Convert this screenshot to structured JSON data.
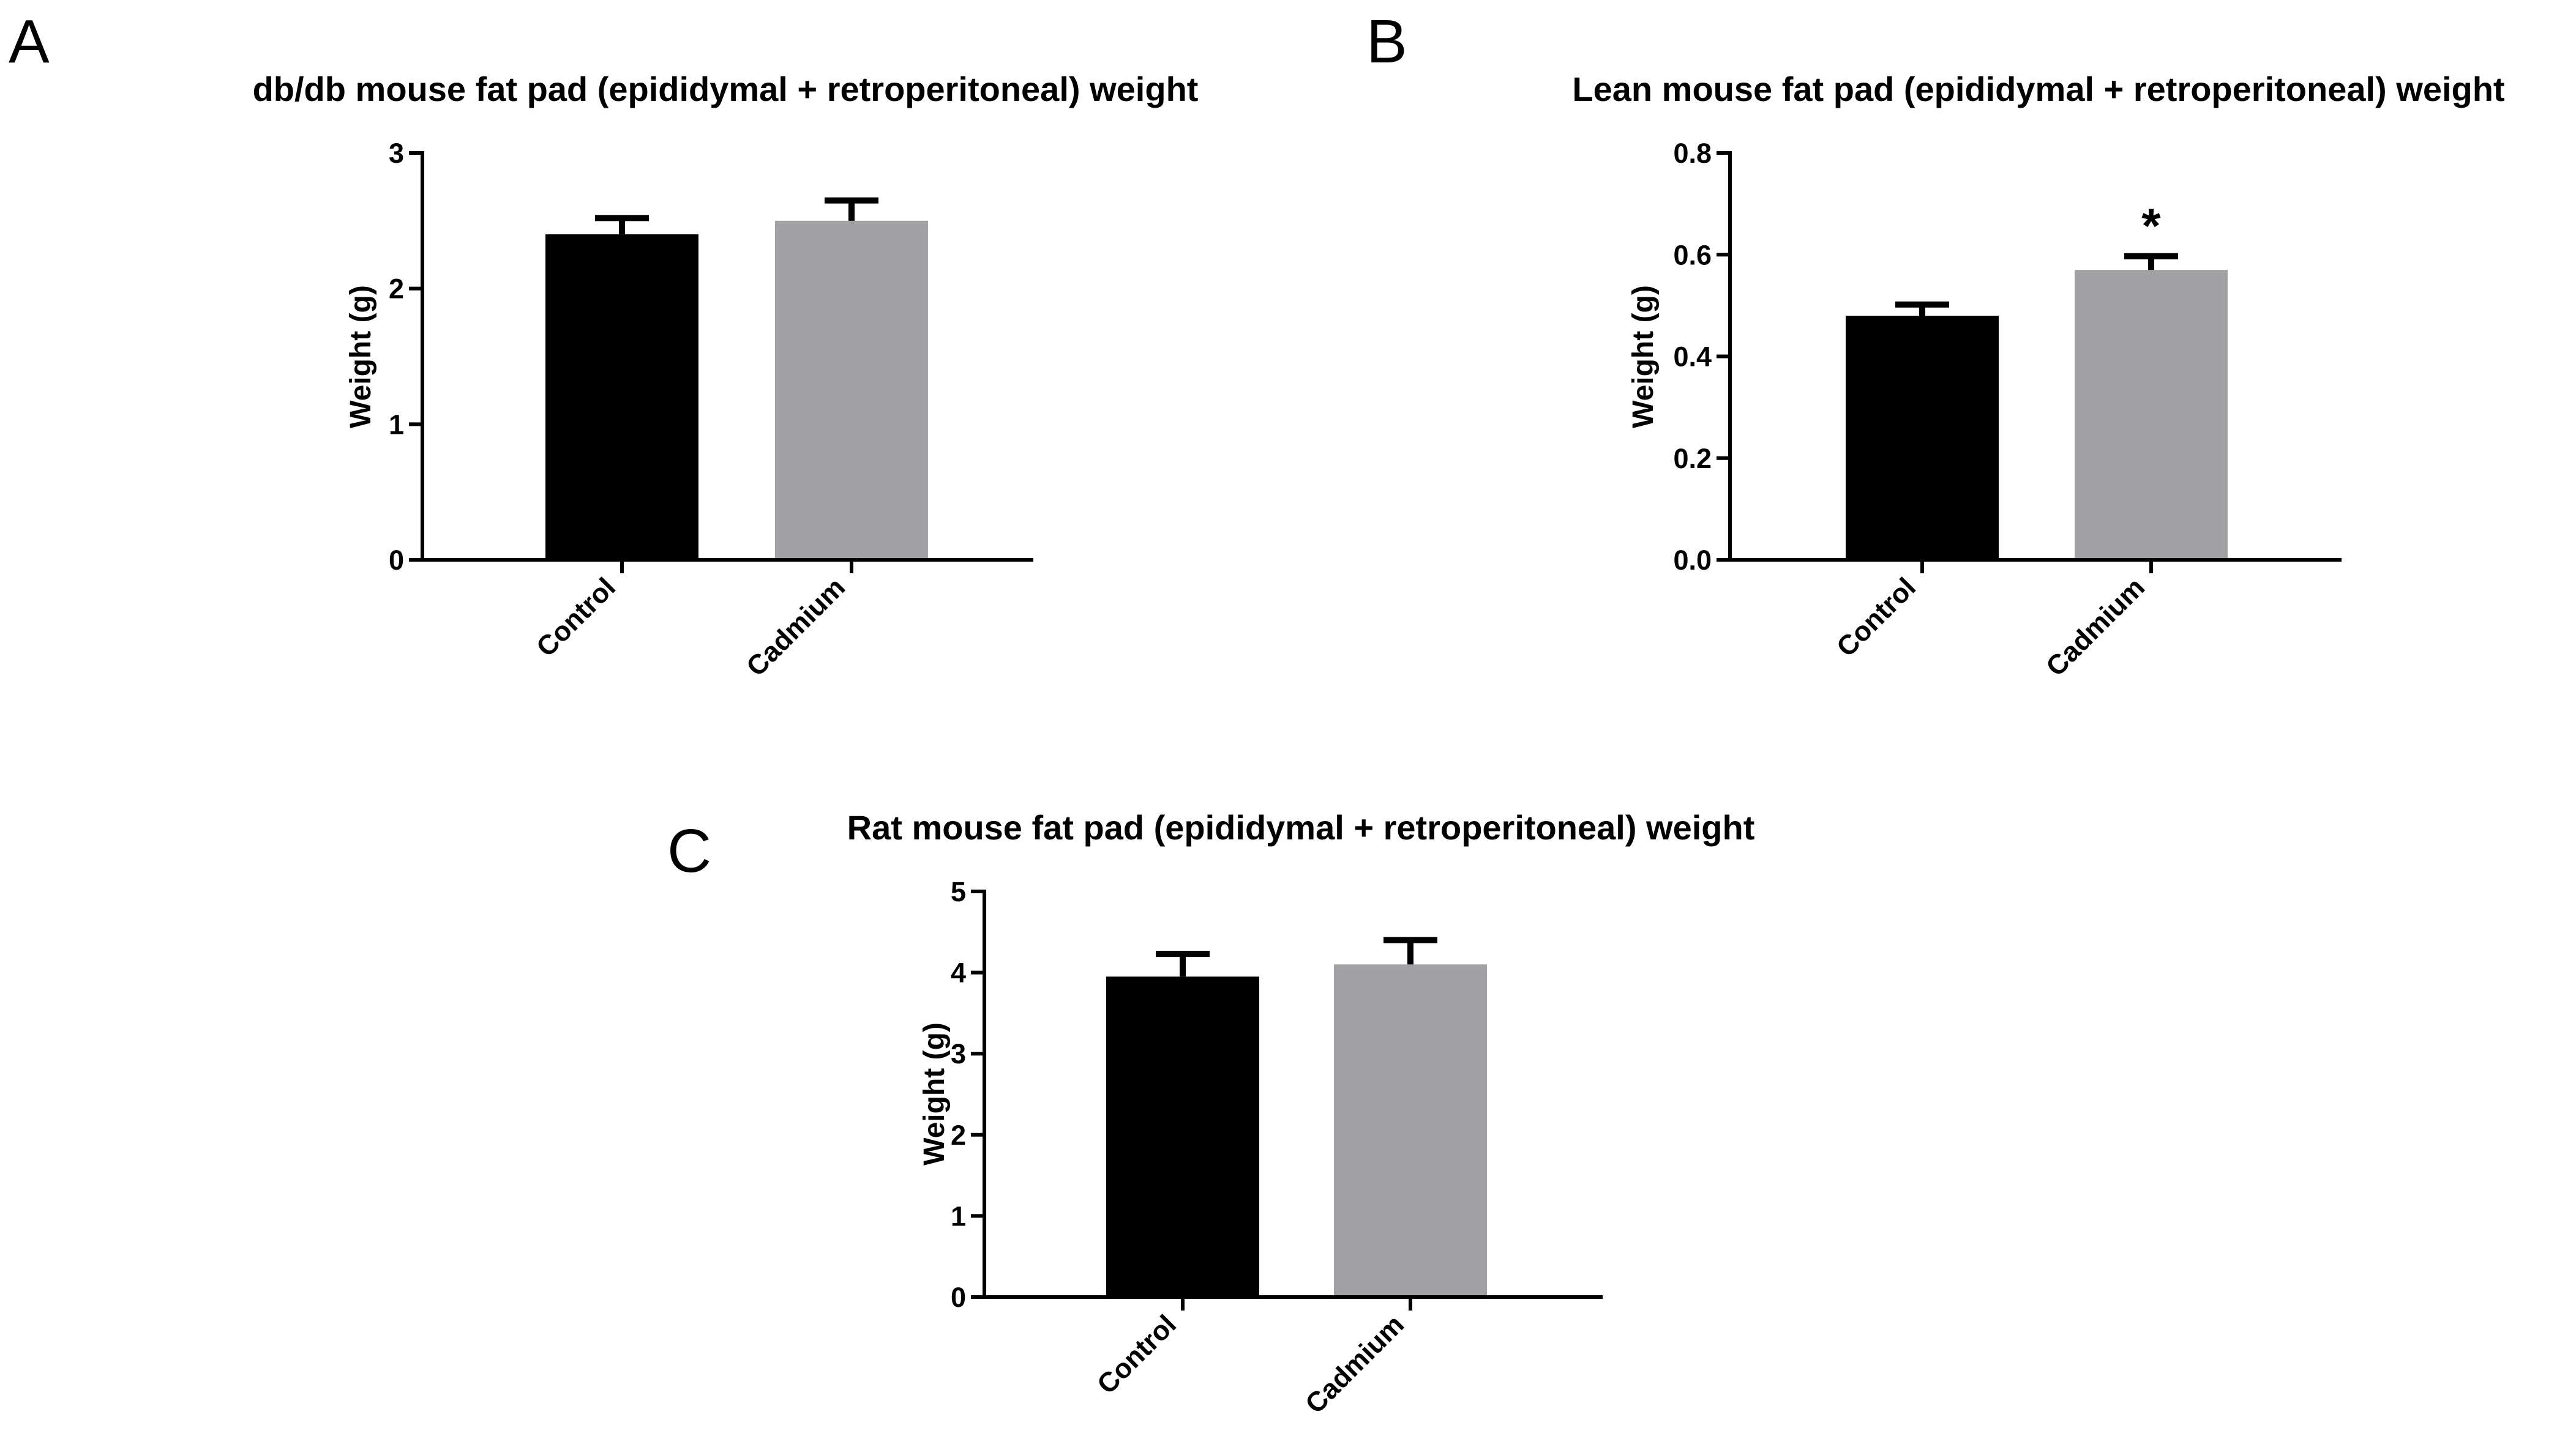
{
  "chart_data": [
    {
      "panel": "A",
      "type": "bar",
      "title": "db/db mouse fat pad (epididymal + retroperitoneal) weight",
      "xlabel": "",
      "ylabel": "Weight (g)",
      "ylim": [
        0,
        3
      ],
      "yticks": [
        0,
        1,
        2,
        3
      ],
      "ytick_labels": [
        "0",
        "1",
        "2",
        "3"
      ],
      "categories": [
        "Control",
        "Cadmium"
      ],
      "values": [
        2.4,
        2.5
      ],
      "errors": [
        0.12,
        0.15
      ],
      "colors": [
        "#000000",
        "#a1a1a6"
      ],
      "annotations": [
        "",
        ""
      ]
    },
    {
      "panel": "B",
      "type": "bar",
      "title": "Lean mouse fat pad (epididymal + retroperitoneal) weight",
      "xlabel": "",
      "ylabel": "Weight (g)",
      "ylim": [
        0,
        0.8
      ],
      "yticks": [
        0,
        0.2,
        0.4,
        0.6,
        0.8
      ],
      "ytick_labels": [
        "0.0",
        "0.2",
        "0.4",
        "0.6",
        "0.8"
      ],
      "categories": [
        "Control",
        "Cadmium"
      ],
      "values": [
        0.48,
        0.57
      ],
      "errors": [
        0.022,
        0.027
      ],
      "colors": [
        "#000000",
        "#a1a1a6"
      ],
      "annotations": [
        "",
        "*"
      ]
    },
    {
      "panel": "C",
      "type": "bar",
      "title": "Rat mouse fat pad (epididymal + retroperitoneal) weight",
      "xlabel": "",
      "ylabel": "Weight (g)",
      "ylim": [
        0,
        5
      ],
      "yticks": [
        0,
        1,
        2,
        3,
        4,
        5
      ],
      "ytick_labels": [
        "0",
        "1",
        "2",
        "3",
        "4",
        "5"
      ],
      "categories": [
        "Control",
        "Cadmium"
      ],
      "values": [
        3.95,
        4.1
      ],
      "errors": [
        0.28,
        0.3
      ],
      "colors": [
        "#000000",
        "#a1a1a6"
      ],
      "annotations": [
        "",
        ""
      ]
    }
  ]
}
